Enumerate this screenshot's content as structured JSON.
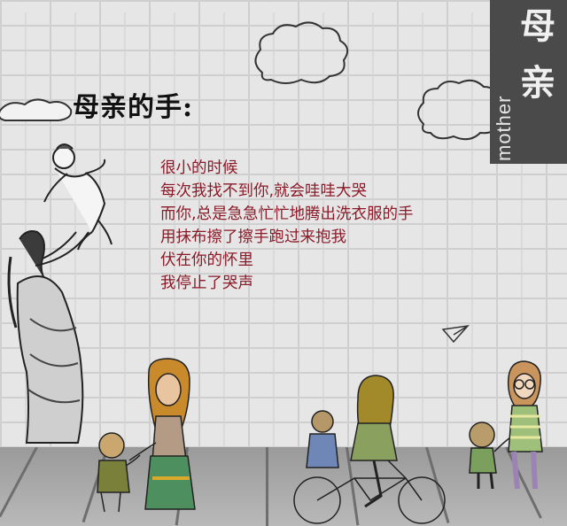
{
  "heading": {
    "title": "母亲的手:"
  },
  "poem": {
    "lines": [
      "很小的时候",
      "每次我找不到你,就会哇哇大哭",
      "而你,总是急急忙忙地腾出洗衣服的手",
      "用抹布擦了擦手跑过来抱我",
      "伏在你的怀里",
      "我停止了哭声"
    ]
  },
  "corner": {
    "char_top": "母",
    "char_bottom": "亲",
    "word": "mother"
  },
  "colors": {
    "poem_text": "#8b1a28",
    "sign_bg": "#4a4a4a"
  }
}
